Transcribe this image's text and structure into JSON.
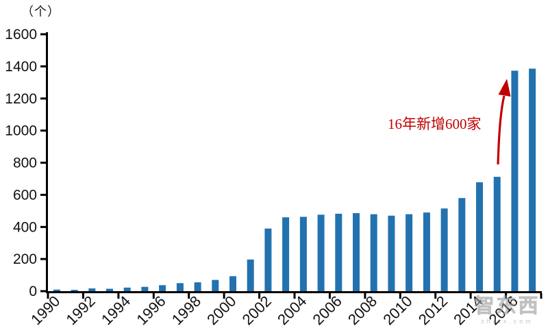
{
  "chart_data": {
    "type": "bar",
    "title_unit": "（个）",
    "categories": [
      1990,
      1991,
      1992,
      1993,
      1994,
      1995,
      1996,
      1997,
      1998,
      1999,
      2000,
      2001,
      2002,
      2003,
      2004,
      2005,
      2006,
      2007,
      2008,
      2009,
      2010,
      2011,
      2012,
      2013,
      2014,
      2015,
      2016,
      2017
    ],
    "values": [
      10,
      8,
      17,
      15,
      22,
      27,
      37,
      50,
      55,
      70,
      93,
      197,
      390,
      460,
      463,
      476,
      482,
      486,
      479,
      470,
      479,
      490,
      515,
      580,
      678,
      712,
      1373,
      1386
    ],
    "x_tick_labels": [
      "1990",
      "1992",
      "1994",
      "1996",
      "1998",
      "2000",
      "2002",
      "2004",
      "2006",
      "2008",
      "2010",
      "2012",
      "2014",
      "2016"
    ],
    "y_ticks": [
      0,
      200,
      400,
      600,
      800,
      1000,
      1200,
      1400,
      1600
    ],
    "ylim": [
      0,
      1600
    ],
    "xlabel": "",
    "ylabel": "（个）",
    "grid": false,
    "legend": "none",
    "bar_color": "#2272B0",
    "axis_color": "#000000",
    "annotation": {
      "text": "16年新增600家",
      "color": "#C00000"
    },
    "watermark": {
      "brand": "智东西",
      "domain": "zhidx.com"
    }
  }
}
